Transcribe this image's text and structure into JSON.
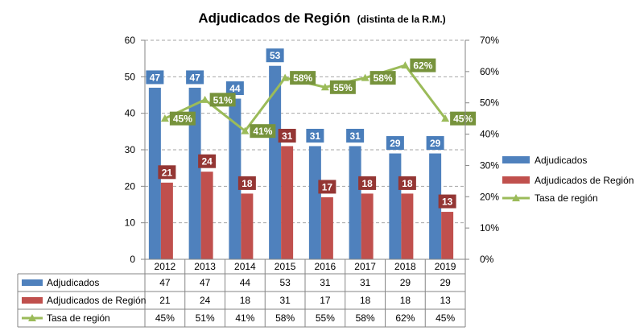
{
  "chart_data": {
    "type": "bar",
    "title": "Adjudicados de Región",
    "subtitle": "(distinta de la R.M.)",
    "categories": [
      "2012",
      "2013",
      "2014",
      "2015",
      "2016",
      "2017",
      "2018",
      "2019"
    ],
    "series": [
      {
        "name": "Adjudicados",
        "kind": "bar",
        "axis": "left",
        "color": "#4f81bd",
        "label_bg": "#4a7ebb",
        "values": [
          47,
          47,
          44,
          53,
          31,
          31,
          29,
          29
        ],
        "labels": [
          "47",
          "47",
          "44",
          "53",
          "31",
          "31",
          "29",
          "29"
        ]
      },
      {
        "name": "Adjudicados de Región",
        "kind": "bar",
        "axis": "left",
        "color": "#c0504d",
        "label_bg": "#943634",
        "values": [
          21,
          24,
          18,
          31,
          17,
          18,
          18,
          13
        ],
        "labels": [
          "21",
          "24",
          "18",
          "31",
          "17",
          "18",
          "18",
          "13"
        ]
      },
      {
        "name": "Tasa de región",
        "kind": "line",
        "axis": "right",
        "color": "#9bbb59",
        "label_bg": "#77933c",
        "values": [
          45,
          51,
          41,
          58,
          55,
          58,
          62,
          45
        ],
        "labels": [
          "45%",
          "51%",
          "41%",
          "58%",
          "55%",
          "58%",
          "62%",
          "45%"
        ]
      }
    ],
    "y_left": {
      "min": 0,
      "max": 60,
      "step": 10,
      "ticks": [
        "0",
        "10",
        "20",
        "30",
        "40",
        "50",
        "60"
      ]
    },
    "y_right": {
      "min": 0,
      "max": 70,
      "step": 10,
      "ticks": [
        "0%",
        "10%",
        "20%",
        "30%",
        "40%",
        "50%",
        "60%",
        "70%"
      ]
    },
    "grid": true,
    "legend_position": "right",
    "data_table": true
  }
}
